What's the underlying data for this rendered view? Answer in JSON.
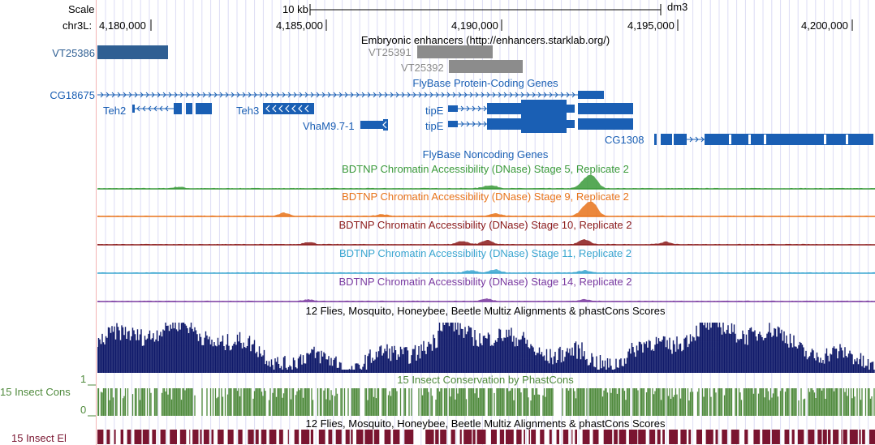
{
  "ruler": {
    "scale_label": "Scale",
    "scale_value": "10 kb",
    "assembly": "dm3",
    "chrom_label": "chr3L:",
    "positions": [
      "4,180,000",
      "4,185,000",
      "4,190,000",
      "4,195,000",
      "4,200,000"
    ]
  },
  "tracks": {
    "enhancers": {
      "title": "Embryonic enhancers (http://enhancers.starklab.org/)",
      "items": [
        {
          "name": "VT25386",
          "color": "#2f5f93"
        },
        {
          "name": "VT25391",
          "color": "#8c8c8c"
        },
        {
          "name": "VT25392",
          "color": "#8c8c8c"
        }
      ]
    },
    "genes": {
      "title": "FlyBase Protein-Coding Genes",
      "color": "#1a5fb4",
      "items": [
        "CG18675",
        "Teh2",
        "Teh3",
        "VhaM9.7-1",
        "tipE",
        "tipE",
        "CG1308"
      ]
    },
    "noncoding": {
      "title": "FlyBase Noncoding Genes"
    },
    "dnase": [
      {
        "title": "BDTNP Chromatin Accessibility (DNase) Stage 5, Replicate 2",
        "color": "#3a9a3a"
      },
      {
        "title": "BDTNP Chromatin Accessibility (DNase) Stage 9, Replicate 2",
        "color": "#e8731a"
      },
      {
        "title": "BDTNP Chromatin Accessibility (DNase) Stage 10, Replicate 2",
        "color": "#8b1a1a"
      },
      {
        "title": "BDTNP Chromatin Accessibility (DNase) Stage 11, Replicate 2",
        "color": "#3aa6d0"
      },
      {
        "title": "BDTNP Chromatin Accessibility (DNase) Stage 14, Replicate 2",
        "color": "#7a3aa0"
      }
    ],
    "multiz": {
      "title": "12 Flies, Mosquito, Honeybee, Beetle Multiz Alignments & phastCons Scores",
      "color": "#101a6a"
    },
    "phastcons": {
      "title": "15 Insect Conservation by PhastCons",
      "left_label": "15 Insect Cons",
      "axis_max": "1",
      "axis_min": "0",
      "color": "#4f8a3c"
    },
    "elements": {
      "title": "12 Flies, Mosquito, Honeybee, Beetle Multiz Alignments & phastCons Scores",
      "left_label": "15 Insect El",
      "color": "#7a1530"
    }
  }
}
